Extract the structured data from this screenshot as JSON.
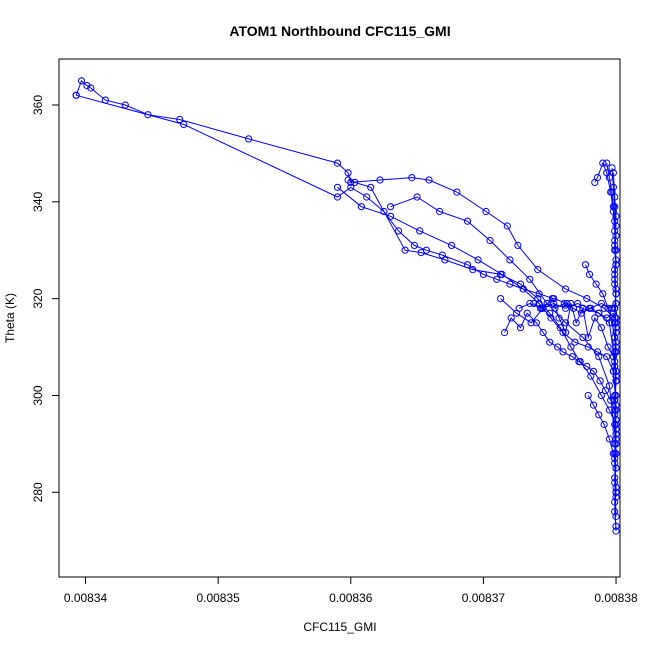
{
  "chart_data": {
    "type": "line",
    "title": "ATOM1 Northbound CFC115_GMI",
    "xlabel": "CFC115_GMI",
    "ylabel": "Theta (K)",
    "xlim": [
      0.008338,
      0.0083803
    ],
    "ylim": [
      262.5,
      369.5
    ],
    "x_ticks": [
      "0.00834",
      "0.00835",
      "0.00836",
      "0.00837",
      "0.00838"
    ],
    "x_tick_values": [
      0.00834,
      0.00835,
      0.00836,
      0.00837,
      0.00838
    ],
    "y_ticks": [
      "280",
      "300",
      "320",
      "340",
      "360"
    ],
    "y_tick_values": [
      280,
      300,
      320,
      340,
      360
    ],
    "grid": false,
    "marker": "open-circle",
    "color": "#0000ff",
    "series": [
      {
        "x": [
          0.0083393,
          0.0083397,
          0.0083401,
          0.0083404,
          0.0083415,
          0.008343,
          0.0083447,
          0.0083471,
          0.0083523,
          0.008359,
          0.0083598,
          0.00836,
          0.0083622,
          0.0083646,
          0.0083659,
          0.008368,
          0.0083702,
          0.0083718,
          0.0083726,
          0.0083741,
          0.0083762,
          0.0083778,
          0.0083791,
          0.0083799,
          0.00838,
          0.0083798,
          0.00838,
          0.0083799,
          0.00838
        ],
        "y": [
          362.0,
          365.0,
          364.0,
          363.5,
          361.0,
          360.0,
          358.0,
          357.0,
          353.0,
          348.0,
          346.0,
          344.0,
          344.5,
          345.0,
          344.5,
          342.0,
          338.0,
          335.0,
          331.0,
          326.0,
          322.0,
          320.0,
          318.0,
          316.0,
          310.0,
          305.0,
          300.0,
          296.0,
          292.0
        ]
      },
      {
        "x": [
          0.0083393,
          0.0083474,
          0.008359,
          0.00836,
          0.0083612,
          0.0083625,
          0.0083636,
          0.0083648,
          0.0083657,
          0.0083669,
          0.0083688,
          0.00837,
          0.008371,
          0.008372,
          0.008373,
          0.0083742,
          0.0083753,
          0.0083763,
          0.0083775,
          0.0083787,
          0.0083795,
          0.00838,
          0.0083799,
          0.00838
        ],
        "y": [
          362.0,
          356.0,
          341.0,
          343.0,
          341.0,
          338.0,
          334.0,
          331.0,
          330.0,
          329.0,
          327.0,
          325.0,
          324.0,
          323.0,
          322.0,
          321.0,
          320.0,
          319.0,
          318.0,
          317.0,
          315.0,
          305.0,
          290.0,
          280.0
        ]
      },
      {
        "x": [
          0.008359,
          0.0083608,
          0.008363,
          0.0083652,
          0.0083676,
          0.0083696,
          0.0083714,
          0.008373,
          0.0083742,
          0.0083751,
          0.008376,
          0.0083769,
          0.0083779,
          0.0083786,
          0.0083793,
          0.0083798,
          0.00838,
          0.0083799,
          0.00838
        ],
        "y": [
          343.0,
          339.0,
          337.0,
          334.0,
          331.0,
          328.0,
          325.0,
          322.0,
          319.0,
          316.0,
          313.0,
          311.0,
          310.0,
          309.0,
          308.0,
          305.0,
          298.0,
          286.0,
          275.0
        ]
      },
      {
        "x": [
          0.008363,
          0.008365,
          0.0083667,
          0.0083688,
          0.0083705,
          0.008372,
          0.0083735,
          0.0083748,
          0.0083762,
          0.0083775,
          0.0083787,
          0.0083795,
          0.00838,
          0.0083799,
          0.00838
        ],
        "y": [
          339.0,
          341.0,
          338.0,
          336.0,
          332.0,
          328.0,
          324.0,
          319.0,
          315.0,
          312.0,
          308.0,
          302.0,
          290.0,
          278.0,
          272.0
        ]
      },
      {
        "x": [
          0.0083598,
          0.0083603,
          0.0083615,
          0.0083641,
          0.0083653,
          0.0083671,
          0.0083692,
          0.0083713,
          0.0083728,
          0.0083741,
          0.008375,
          0.0083758,
          0.0083766,
          0.0083773,
          0.0083781,
          0.0083789,
          0.0083795,
          0.00838,
          0.00838
        ],
        "y": [
          344.5,
          344.0,
          343.0,
          330.0,
          329.5,
          328.0,
          326.0,
          325.0,
          323.0,
          320.0,
          317.0,
          314.0,
          310.0,
          307.0,
          304.0,
          300.0,
          297.0,
          294.0,
          288.0
        ]
      },
      {
        "x": [
          0.0083713,
          0.0083725,
          0.0083736,
          0.0083745,
          0.0083752,
          0.0083757,
          0.0083762,
          0.0083766,
          0.008377,
          0.0083775,
          0.0083779,
          0.0083784,
          0.0083789,
          0.0083794,
          0.0083798,
          0.00838
        ],
        "y": [
          320.0,
          317.0,
          315.0,
          318.0,
          320.0,
          316.0,
          313.0,
          319.0,
          315.0,
          318.0,
          312.0,
          316.0,
          314.0,
          310.0,
          308.0,
          305.0
        ]
      },
      {
        "x": [
          0.0083716,
          0.0083721,
          0.0083728,
          0.0083733,
          0.008374,
          0.0083745,
          0.008375,
          0.0083756,
          0.008376,
          0.0083767,
          0.0083772,
          0.0083778,
          0.0083783,
          0.0083788,
          0.0083792,
          0.0083796,
          0.0083799,
          0.00838
        ],
        "y": [
          313.0,
          316.0,
          314.0,
          317.0,
          315.0,
          313.0,
          311.0,
          310.0,
          309.0,
          308.0,
          307.0,
          306.0,
          305.0,
          303.0,
          301.0,
          299.0,
          297.0,
          295.0
        ]
      },
      {
        "x": [
          0.0083784,
          0.0083786,
          0.008379,
          0.0083793,
          0.0083796,
          0.0083798,
          0.0083799,
          0.00838,
          0.0083799,
          0.00838,
          0.0083799,
          0.00838
        ],
        "y": [
          344.0,
          345.0,
          348.0,
          346.0,
          342.0,
          338.0,
          334.0,
          330.0,
          326.0,
          322.0,
          318.0,
          314.0
        ]
      },
      {
        "x": [
          0.0083777,
          0.008378,
          0.0083785,
          0.008379,
          0.0083794,
          0.0083797,
          0.0083799,
          0.00838,
          0.0083799,
          0.00838
        ],
        "y": [
          327.0,
          325.0,
          323.0,
          321.0,
          318.0,
          315.0,
          312.0,
          309.0,
          306.0,
          303.0
        ]
      },
      {
        "x": [
          0.0083793,
          0.0083795,
          0.0083797,
          0.0083798,
          0.0083799,
          0.00838,
          0.0083799,
          0.00838,
          0.0083799,
          0.00838,
          0.0083799,
          0.00838,
          0.0083799,
          0.00838,
          0.0083799,
          0.00838,
          0.0083799,
          0.00838,
          0.0083799,
          0.00838,
          0.0083799,
          0.00838,
          0.0083799,
          0.00838
        ],
        "y": [
          348.0,
          345.0,
          342.0,
          339.0,
          336.0,
          333.0,
          330.0,
          327.0,
          324.0,
          321.0,
          318.0,
          315.0,
          312.0,
          309.0,
          306.0,
          303.0,
          300.0,
          297.0,
          294.0,
          291.0,
          288.0,
          285.0,
          282.0,
          279.0
        ]
      },
      {
        "x": [
          0.0083797,
          0.0083798,
          0.0083799,
          0.00838,
          0.0083799,
          0.00838,
          0.0083799,
          0.00838,
          0.0083799,
          0.00838,
          0.0083799,
          0.00838,
          0.0083799,
          0.00838
        ],
        "y": [
          347.0,
          343.0,
          339.0,
          335.0,
          331.0,
          327.0,
          323.0,
          319.0,
          315.0,
          311.0,
          307.0,
          303.0,
          299.0,
          295.0
        ]
      },
      {
        "x": [
          0.0083798,
          0.0083799,
          0.00838,
          0.0083799,
          0.00838,
          0.0083799,
          0.00838,
          0.0083799,
          0.00838,
          0.0083799,
          0.00838,
          0.0083799,
          0.00838,
          0.0083799,
          0.00838,
          0.0083799,
          0.00838
        ],
        "y": [
          346.0,
          341.0,
          337.0,
          332.0,
          328.0,
          325.0,
          321.0,
          318.0,
          313.0,
          309.0,
          304.0,
          299.0,
          293.0,
          287.0,
          281.0,
          276.0,
          273.0
        ]
      },
      {
        "x": [
          0.0083779,
          0.0083783,
          0.0083787,
          0.0083791,
          0.0083795,
          0.0083798,
          0.00838,
          0.0083799,
          0.00838
        ],
        "y": [
          300.0,
          298.0,
          296.0,
          294.0,
          291.0,
          288.0,
          285.0,
          283.0,
          280.0
        ]
      },
      {
        "x": [
          0.0083738,
          0.0083743,
          0.0083748,
          0.0083754,
          0.0083761,
          0.0083768,
          0.0083774,
          0.0083781,
          0.0083787,
          0.0083793,
          0.0083798,
          0.00838
        ],
        "y": [
          319.0,
          318.0,
          319.0,
          318.0,
          319.0,
          318.0,
          317.0,
          318.0,
          317.0,
          316.0,
          317.0,
          316.0
        ]
      },
      {
        "x": [
          0.0083727,
          0.0083735,
          0.0083744,
          0.0083753,
          0.0083762,
          0.0083771,
          0.008378,
          0.0083789,
          0.0083797,
          0.00838
        ],
        "y": [
          318.0,
          319.0,
          318.0,
          319.0,
          318.0,
          319.0,
          318.0,
          319.0,
          318.0,
          319.0
        ]
      }
    ]
  }
}
